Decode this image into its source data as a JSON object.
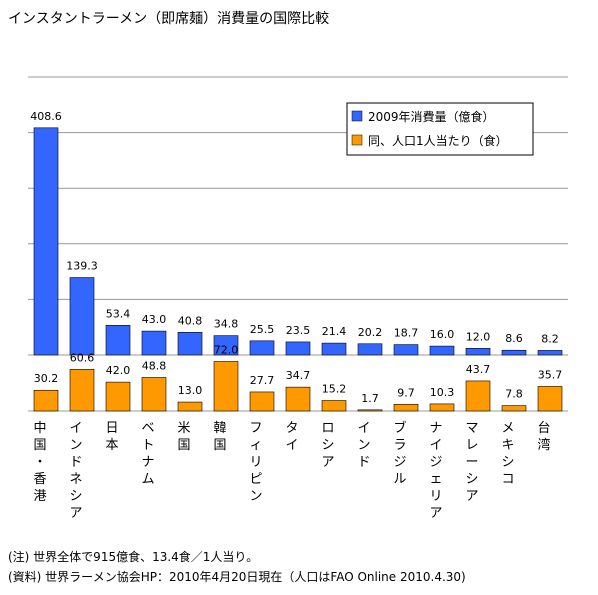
{
  "title": "インスタントラーメン（即席麺）消費量の国際比較",
  "notes": {
    "note1": "(注) 世界全体で915億食、13.4食／1人当り。",
    "note2": "(資料) 世界ラーメン協会HP：2010年4月20日現在（人口はFAO Online 2010.4.30)"
  },
  "chart_data": {
    "type": "bar",
    "categories": [
      "中国・香港",
      "インドネシア",
      "日本",
      "ベトナム",
      "米国",
      "韓国",
      "フィリピン",
      "タイ",
      "ロシア",
      "インド",
      "ブラジル",
      "ナイジェリア",
      "マレーシア",
      "メキシコ",
      "台湾"
    ],
    "series": [
      {
        "name": "2009年消費量（億食）",
        "color": "#3366ff",
        "values": [
          408.6,
          139.3,
          53.4,
          43.0,
          40.8,
          34.8,
          25.5,
          23.5,
          21.4,
          20.2,
          18.7,
          16.0,
          12.0,
          8.6,
          8.2
        ],
        "labels": [
          "408.6",
          "139.3",
          "53.4",
          "43.0",
          "40.8",
          "34.8",
          "25.5",
          "23.5",
          "21.4",
          "20.2",
          "18.7",
          "16.0",
          "12.0",
          "8.6",
          "8.2"
        ],
        "ylim": [
          0,
          500
        ]
      },
      {
        "name": "同、人口1人当たり（食）",
        "color": "#ff9900",
        "values": [
          30.2,
          60.6,
          42.0,
          48.8,
          13.0,
          72.0,
          27.7,
          34.7,
          15.2,
          1.7,
          9.7,
          10.3,
          43.7,
          7.8,
          35.7
        ],
        "labels": [
          "30.2",
          "60.6",
          "42.0",
          "48.8",
          "13.0",
          "72.0",
          "27.7",
          "34.7",
          "15.2",
          "1.7",
          "9.7",
          "10.3",
          "43.7",
          "7.8",
          "35.7"
        ],
        "ylim": [
          0,
          80
        ]
      }
    ],
    "legend_position": "top-right",
    "grid": true
  }
}
